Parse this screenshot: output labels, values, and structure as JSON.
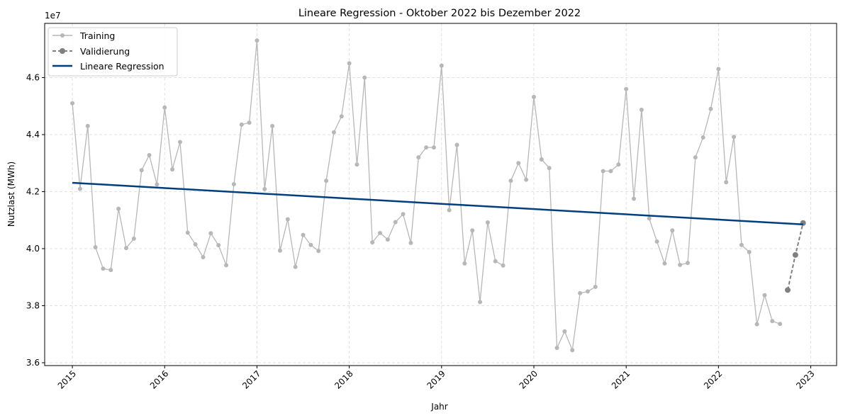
{
  "chart_data": {
    "type": "line",
    "title": "Lineare Regression - Oktober 2022 bis Dezember 2022",
    "xlabel": "Jahr",
    "ylabel": "Nutzlast (MWh)",
    "y_offset_label": "1e7",
    "y_scale": 10000000,
    "xlim": [
      2014.7,
      2023.28
    ],
    "ylim": [
      35900000,
      47900000
    ],
    "x_ticks": [
      {
        "value": 2015,
        "label": "2015"
      },
      {
        "value": 2016,
        "label": "2016"
      },
      {
        "value": 2017,
        "label": "2017"
      },
      {
        "value": 2018,
        "label": "2018"
      },
      {
        "value": 2019,
        "label": "2019"
      },
      {
        "value": 2020,
        "label": "2020"
      },
      {
        "value": 2021,
        "label": "2021"
      },
      {
        "value": 2022,
        "label": "2022"
      },
      {
        "value": 2023,
        "label": "2023"
      }
    ],
    "y_ticks": [
      {
        "value": 36000000,
        "label": "3.6"
      },
      {
        "value": 38000000,
        "label": "3.8"
      },
      {
        "value": 40000000,
        "label": "4.0"
      },
      {
        "value": 42000000,
        "label": "4.2"
      },
      {
        "value": 44000000,
        "label": "4.4"
      },
      {
        "value": 46000000,
        "label": "4.6"
      }
    ],
    "grid": true,
    "legend_position": "top-left",
    "series": [
      {
        "name": "Training",
        "style": "line-markers",
        "color": "#b7b7b7",
        "start_year": 2015,
        "start_month": 1,
        "values": [
          45100000,
          42100000,
          44300000,
          40050000,
          39300000,
          39250000,
          41400000,
          40020000,
          40350000,
          42750000,
          43280000,
          42250000,
          44950000,
          42780000,
          43740000,
          40560000,
          40150000,
          39700000,
          40540000,
          40120000,
          39420000,
          42260000,
          44350000,
          44420000,
          47300000,
          42090000,
          44300000,
          39930000,
          41030000,
          39360000,
          40480000,
          40130000,
          39920000,
          42380000,
          44080000,
          44640000,
          46500000,
          42950000,
          46000000,
          40220000,
          40550000,
          40320000,
          40930000,
          41210000,
          40200000,
          43200000,
          43550000,
          43550000,
          46420000,
          41350000,
          43640000,
          39480000,
          40640000,
          38130000,
          40920000,
          39560000,
          39410000,
          42380000,
          43000000,
          42420000,
          45320000,
          43130000,
          42830000,
          36520000,
          37100000,
          36440000,
          38440000,
          38500000,
          38660000,
          42720000,
          42720000,
          42950000,
          45600000,
          41750000,
          44870000,
          41060000,
          40250000,
          39480000,
          40640000,
          39430000,
          39500000,
          43200000,
          43900000,
          44900000,
          46300000,
          42330000,
          43920000,
          40130000,
          39880000,
          37350000,
          38370000,
          37460000,
          37360000
        ]
      },
      {
        "name": "Validierung",
        "style": "dashed-markers",
        "color": "#808080",
        "start_year": 2022,
        "start_month": 10,
        "values": [
          38550000,
          39780000,
          40900000
        ]
      },
      {
        "name": "Lineare Regression",
        "style": "line",
        "color": "#003f7f",
        "points": [
          {
            "x": 2015.0,
            "y": 42310000
          },
          {
            "x": 2022.917,
            "y": 40850000
          }
        ]
      }
    ]
  }
}
